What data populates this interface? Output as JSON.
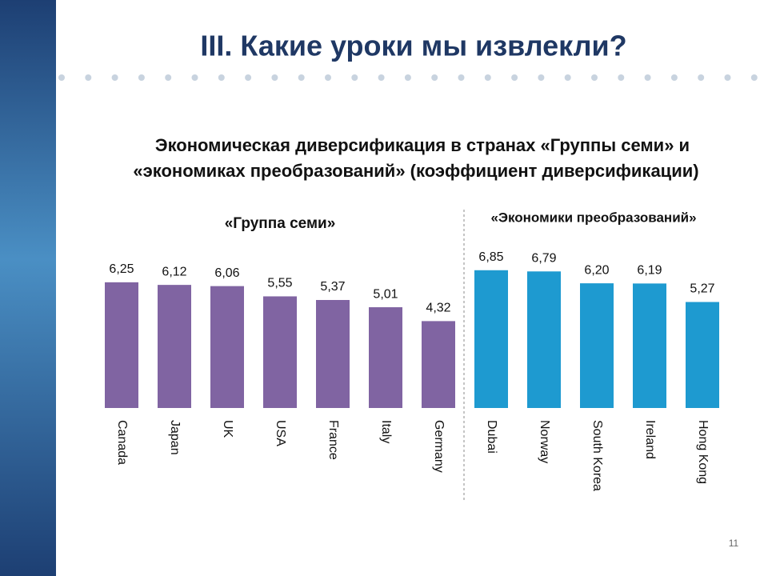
{
  "slide_title": "III. Какие уроки мы извлекли?",
  "page_number": "11",
  "chart_data": {
    "type": "bar",
    "title": [
      "Экономическая диверсификация в странах «Группы семи» и",
      "«экономиках преобразований» (коэффициент диверсификации)"
    ],
    "annotations": [
      "«Группа семи»",
      "«Экономики преобразований»"
    ],
    "categories": [
      "Canada",
      "Japan",
      "UK",
      "USA",
      "France",
      "Italy",
      "Germany",
      "Dubai",
      "Norway",
      "South Korea",
      "Ireland",
      "Hong Kong"
    ],
    "values": [
      6.25,
      6.12,
      6.06,
      5.55,
      5.37,
      5.01,
      4.32,
      6.85,
      6.79,
      6.2,
      6.19,
      5.27
    ],
    "value_labels": [
      "6,25",
      "6,12",
      "6,06",
      "5,55",
      "5,37",
      "5,01",
      "4,32",
      "6,85",
      "6,79",
      "6,20",
      "6,19",
      "5,27"
    ],
    "colors": [
      "#8064a2",
      "#8064a2",
      "#8064a2",
      "#8064a2",
      "#8064a2",
      "#8064a2",
      "#8064a2",
      "#1e9ad0",
      "#1e9ad0",
      "#1e9ad0",
      "#1e9ad0",
      "#1e9ad0"
    ],
    "ylim": [
      0,
      7
    ]
  }
}
